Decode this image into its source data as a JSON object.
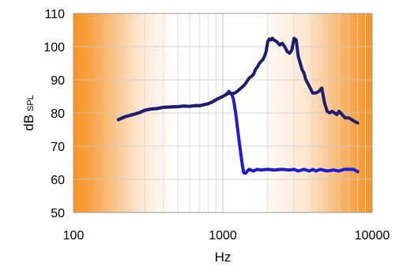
{
  "chart_data": {
    "type": "line",
    "xscale": "log",
    "xlim": [
      100,
      10000
    ],
    "ylim": [
      50,
      110
    ],
    "xticks": [
      100,
      1000,
      10000
    ],
    "xtick_labels": [
      "100",
      "1000",
      "10000"
    ],
    "yticks": [
      50,
      60,
      70,
      80,
      90,
      100,
      110
    ],
    "ytick_labels": [
      "50",
      "60",
      "70",
      "80",
      "90",
      "100",
      "110"
    ],
    "xlabel": "Hz",
    "ylabel_main": "dB",
    "ylabel_sub": "SPL",
    "grid": true,
    "background": "orange-to-white-to-orange gradient",
    "colors": {
      "background_edge": "#f7941d",
      "background_center": "#ffffff",
      "upper_curve": "#1b1f6e",
      "lower_curve": "#1c1cd6"
    },
    "series": [
      {
        "color": "#1b1f6e",
        "x": [
          200,
          220,
          250,
          280,
          300,
          330,
          360,
          400,
          450,
          500,
          550,
          600,
          650,
          700,
          750,
          800,
          850,
          900,
          950,
          1000,
          1050,
          1100,
          1150,
          1200,
          1250,
          1300,
          1350,
          1400,
          1450,
          1500,
          1550,
          1600,
          1650,
          1700,
          1750,
          1800,
          1850,
          1900,
          1950,
          2000,
          2050,
          2100,
          2150,
          2200,
          2300,
          2400,
          2500,
          2600,
          2700,
          2800,
          2900,
          3000,
          3100,
          3200,
          3300,
          3400,
          3500,
          3600,
          3700,
          3800,
          3900,
          4000,
          4200,
          4400,
          4600,
          4800,
          5000,
          5200,
          5400,
          5600,
          5800,
          6000,
          6300,
          6600,
          7000,
          7400,
          7800,
          8000
        ],
        "y": [
          78,
          78.8,
          79.5,
          80.2,
          80.8,
          81.2,
          81.3,
          81.7,
          81.8,
          81.9,
          82.1,
          82.0,
          82.2,
          82.2,
          82.5,
          82.8,
          83.3,
          84.0,
          84.5,
          85.0,
          85.5,
          86.0,
          85.8,
          86.0,
          86.5,
          87.2,
          87.8,
          88.5,
          89.5,
          90.5,
          91.0,
          91.5,
          93.0,
          93.8,
          94.8,
          95.5,
          96.0,
          97.0,
          98.5,
          101.5,
          102.3,
          102.0,
          102.5,
          102.0,
          101.5,
          100.5,
          101.0,
          100.0,
          98.5,
          98.0,
          99.0,
          102.5,
          102.0,
          97.0,
          95.0,
          93.0,
          92.0,
          90.0,
          89.0,
          88.0,
          87.0,
          86.0,
          86.0,
          86.5,
          87.5,
          83.0,
          80.5,
          80.0,
          80.5,
          80.0,
          79.5,
          80.5,
          79.5,
          78.5,
          78.5,
          77.8,
          77.2,
          77.0
        ]
      },
      {
        "color": "#1c1cd6",
        "x": [
          200,
          220,
          250,
          280,
          300,
          330,
          360,
          400,
          450,
          500,
          550,
          600,
          650,
          700,
          750,
          800,
          850,
          900,
          950,
          1000,
          1050,
          1100,
          1150,
          1180,
          1220,
          1250,
          1300,
          1350,
          1380,
          1420,
          1460,
          1500,
          1600,
          1700,
          1800,
          2000,
          2200,
          2500,
          2800,
          3000,
          3200,
          3500,
          3800,
          4000,
          4200,
          4500,
          5000,
          5500,
          6000,
          6500,
          7000,
          7500,
          8000
        ],
        "y": [
          78,
          78.8,
          79.5,
          80.2,
          80.8,
          81.2,
          81.3,
          81.7,
          81.8,
          81.9,
          82.1,
          82.0,
          82.2,
          82.2,
          82.5,
          82.8,
          83.3,
          84.0,
          84.5,
          85.0,
          85.5,
          86.5,
          85.5,
          84.0,
          80.0,
          76.0,
          70.0,
          64.5,
          62.0,
          61.8,
          62.5,
          63.0,
          62.5,
          63.0,
          62.8,
          63.0,
          62.8,
          63.0,
          62.8,
          63.0,
          62.5,
          63.0,
          62.5,
          63.0,
          62.5,
          63.0,
          62.5,
          62.8,
          62.5,
          63.0,
          63.0,
          63.0,
          62.3
        ]
      }
    ]
  }
}
